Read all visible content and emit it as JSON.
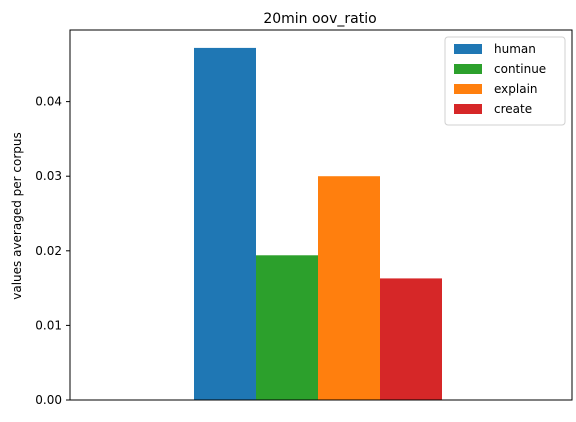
{
  "chart_data": {
    "type": "bar",
    "title": "20min oov_ratio",
    "xlabel": "",
    "ylabel": "values averaged per corpus",
    "ylim": [
      0,
      0.0496
    ],
    "yticks": [
      0.0,
      0.01,
      0.02,
      0.03,
      0.04
    ],
    "ytick_labels": [
      "0.00",
      "0.01",
      "0.02",
      "0.03",
      "0.04"
    ],
    "grid": false,
    "legend_position": "top-right",
    "categories": [
      ""
    ],
    "series": [
      {
        "name": "human",
        "values": [
          0.0472
        ],
        "color": "#1f77b4"
      },
      {
        "name": "continue",
        "values": [
          0.0194
        ],
        "color": "#2ca02c"
      },
      {
        "name": "explain",
        "values": [
          0.03
        ],
        "color": "#ff7f0e"
      },
      {
        "name": "create",
        "values": [
          0.0163
        ],
        "color": "#d62728"
      }
    ]
  }
}
